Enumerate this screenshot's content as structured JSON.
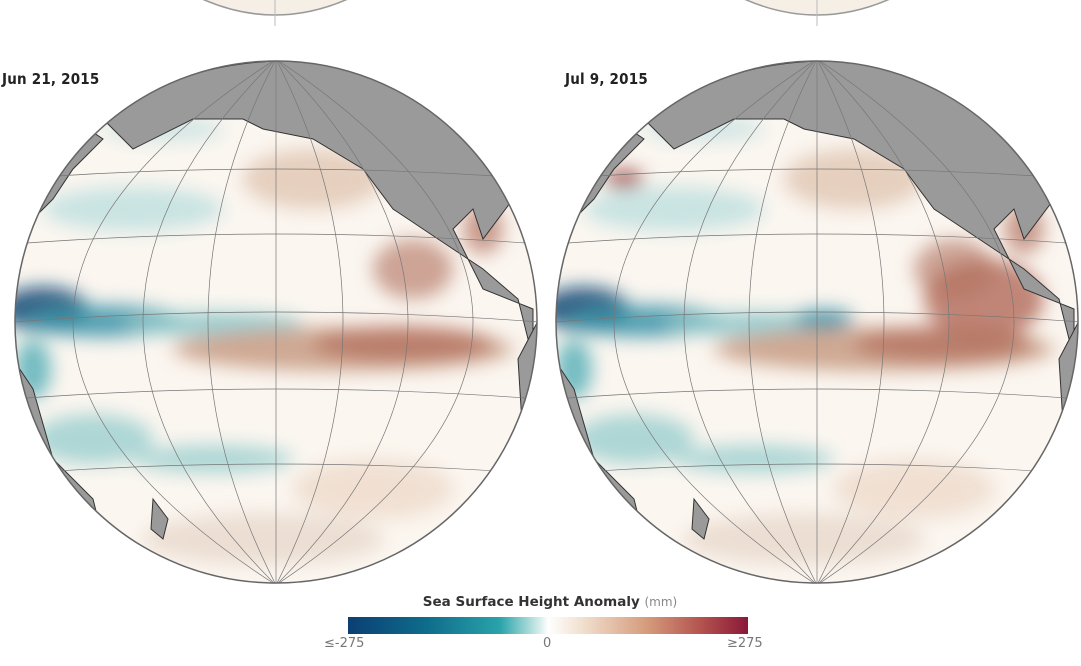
{
  "panels": [
    {
      "date": "Jun 21, 2015"
    },
    {
      "date": "Jul 9, 2015"
    }
  ],
  "legend": {
    "title": "Sea Surface Height Anomaly",
    "unit": "(mm)",
    "min_label": "≤-275",
    "mid_label": "0",
    "max_label": "≥275",
    "colors": {
      "low": "#0b3f73",
      "mid": "#ffffff",
      "high": "#8a1838"
    }
  },
  "land_color": "#9a9a9a"
}
